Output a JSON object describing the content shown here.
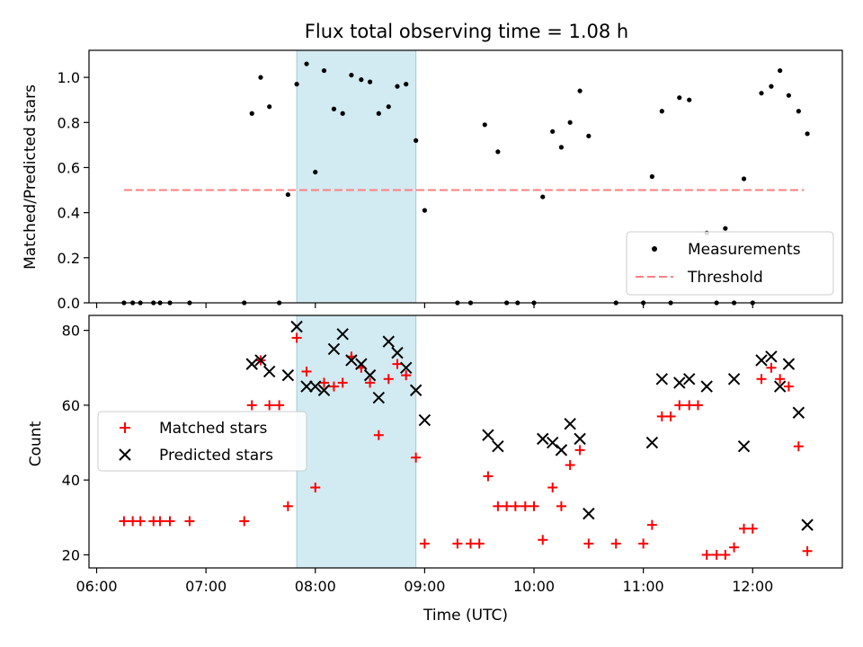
{
  "chart_data": [
    {
      "type": "scatter",
      "title": "Flux total observing time = 1.08 h",
      "ylabel": "Matched/Predicted stars",
      "xlabel": "",
      "ylim": [
        0,
        1.12
      ],
      "xlim_hours": [
        5.93,
        12.82
      ],
      "yticks": [
        "0.0",
        "0.2",
        "0.4",
        "0.6",
        "0.8",
        "1.0"
      ],
      "ytick_values": [
        0,
        0.2,
        0.4,
        0.6,
        0.8,
        1.0
      ],
      "shaded_span_hours": [
        7.83,
        8.92
      ],
      "threshold": {
        "value": 0.5,
        "x_start": 6.25,
        "x_end": 12.47,
        "color": "#ff7f7f"
      },
      "legend": {
        "placement": "lower-right",
        "entries": [
          "Measurements",
          "Threshold"
        ]
      },
      "series": [
        {
          "name": "Measurements",
          "color": "#000000",
          "x": [
            6.25,
            6.33,
            6.4,
            6.52,
            6.58,
            6.67,
            6.85,
            7.35,
            7.42,
            7.5,
            7.58,
            7.67,
            7.75,
            7.83,
            7.92,
            8.0,
            8.08,
            8.17,
            8.25,
            8.33,
            8.42,
            8.5,
            8.58,
            8.67,
            8.75,
            8.83,
            8.92,
            9.0,
            9.3,
            9.42,
            9.55,
            9.67,
            9.75,
            9.85,
            10.0,
            10.08,
            10.17,
            10.25,
            10.33,
            10.42,
            10.5,
            10.75,
            11.0,
            11.08,
            11.17,
            11.25,
            11.33,
            11.42,
            11.58,
            11.67,
            11.75,
            11.83,
            11.92,
            12.0,
            12.08,
            12.17,
            12.25,
            12.33,
            12.42,
            12.5
          ],
          "y": [
            0,
            0,
            0,
            0,
            0,
            0,
            0,
            0,
            0.84,
            1.0,
            0.87,
            0,
            0.48,
            0.97,
            1.06,
            0.58,
            1.03,
            0.86,
            0.84,
            1.01,
            0.99,
            0.98,
            0.84,
            0.87,
            0.96,
            0.97,
            0.72,
            0.41,
            0,
            0,
            0.79,
            0.67,
            0,
            0,
            0,
            0.47,
            0.76,
            0.69,
            0.8,
            0.94,
            0.74,
            0,
            0,
            0.56,
            0.85,
            0,
            0.91,
            0.9,
            0.31,
            0,
            0.33,
            0,
            0.55,
            0,
            0.93,
            0.96,
            1.03,
            0.92,
            0.85,
            0.75
          ]
        }
      ]
    },
    {
      "type": "scatter",
      "title": "",
      "ylabel": "Count",
      "xlabel": "Time (UTC)",
      "ylim": [
        16.5,
        84
      ],
      "xlim_hours": [
        5.93,
        12.82
      ],
      "yticks": [
        "20",
        "40",
        "60",
        "80"
      ],
      "ytick_values": [
        20,
        40,
        60,
        80
      ],
      "xticks": [
        "06:00",
        "07:00",
        "08:00",
        "09:00",
        "10:00",
        "11:00",
        "12:00"
      ],
      "xtick_values": [
        6,
        7,
        8,
        9,
        10,
        11,
        12
      ],
      "shaded_span_hours": [
        7.83,
        8.92
      ],
      "legend": {
        "placement": "center-left",
        "entries": [
          "Matched stars",
          "Predicted stars"
        ]
      },
      "series": [
        {
          "name": "Matched stars",
          "marker": "plus",
          "color": "#ff0000",
          "x": [
            6.25,
            6.33,
            6.4,
            6.52,
            6.58,
            6.67,
            6.85,
            7.35,
            7.42,
            7.5,
            7.58,
            7.67,
            7.75,
            7.83,
            7.92,
            8.0,
            8.08,
            8.17,
            8.25,
            8.33,
            8.42,
            8.5,
            8.58,
            8.67,
            8.75,
            8.83,
            8.92,
            9.0,
            9.3,
            9.42,
            9.5,
            9.58,
            9.67,
            9.75,
            9.83,
            9.92,
            10.0,
            10.08,
            10.17,
            10.25,
            10.33,
            10.42,
            10.5,
            10.75,
            11.0,
            11.08,
            11.17,
            11.25,
            11.33,
            11.42,
            11.5,
            11.58,
            11.67,
            11.75,
            11.83,
            11.92,
            12.0,
            12.08,
            12.17,
            12.25,
            12.33,
            12.42,
            12.5
          ],
          "y": [
            29,
            29,
            29,
            29,
            29,
            29,
            29,
            29,
            60,
            72,
            60,
            60,
            33,
            78,
            69,
            38,
            66,
            65,
            66,
            73,
            70,
            66,
            52,
            67,
            71,
            68,
            46,
            23,
            23,
            23,
            23,
            41,
            33,
            33,
            33,
            33,
            33,
            24,
            38,
            33,
            44,
            48,
            23,
            23,
            23,
            28,
            57,
            57,
            60,
            60,
            60,
            20,
            20,
            20,
            22,
            27,
            27,
            67,
            70,
            67,
            65,
            49,
            21
          ]
        },
        {
          "name": "Predicted stars",
          "marker": "x",
          "color": "#000000",
          "x": [
            7.42,
            7.5,
            7.58,
            7.75,
            7.83,
            7.92,
            8.0,
            8.08,
            8.17,
            8.25,
            8.33,
            8.42,
            8.5,
            8.58,
            8.67,
            8.75,
            8.83,
            8.92,
            9.0,
            9.58,
            9.67,
            10.08,
            10.17,
            10.25,
            10.33,
            10.42,
            10.5,
            11.08,
            11.17,
            11.33,
            11.42,
            11.58,
            11.83,
            11.92,
            12.08,
            12.17,
            12.25,
            12.33,
            12.42,
            12.5
          ],
          "y": [
            71,
            72,
            69,
            68,
            81,
            65,
            65,
            64,
            75,
            79,
            72,
            71,
            68,
            62,
            77,
            74,
            70,
            64,
            56,
            52,
            49,
            51,
            50,
            48,
            55,
            51,
            31,
            50,
            67,
            66,
            67,
            65,
            67,
            49,
            72,
            73,
            65,
            71,
            58,
            28
          ]
        }
      ]
    }
  ]
}
